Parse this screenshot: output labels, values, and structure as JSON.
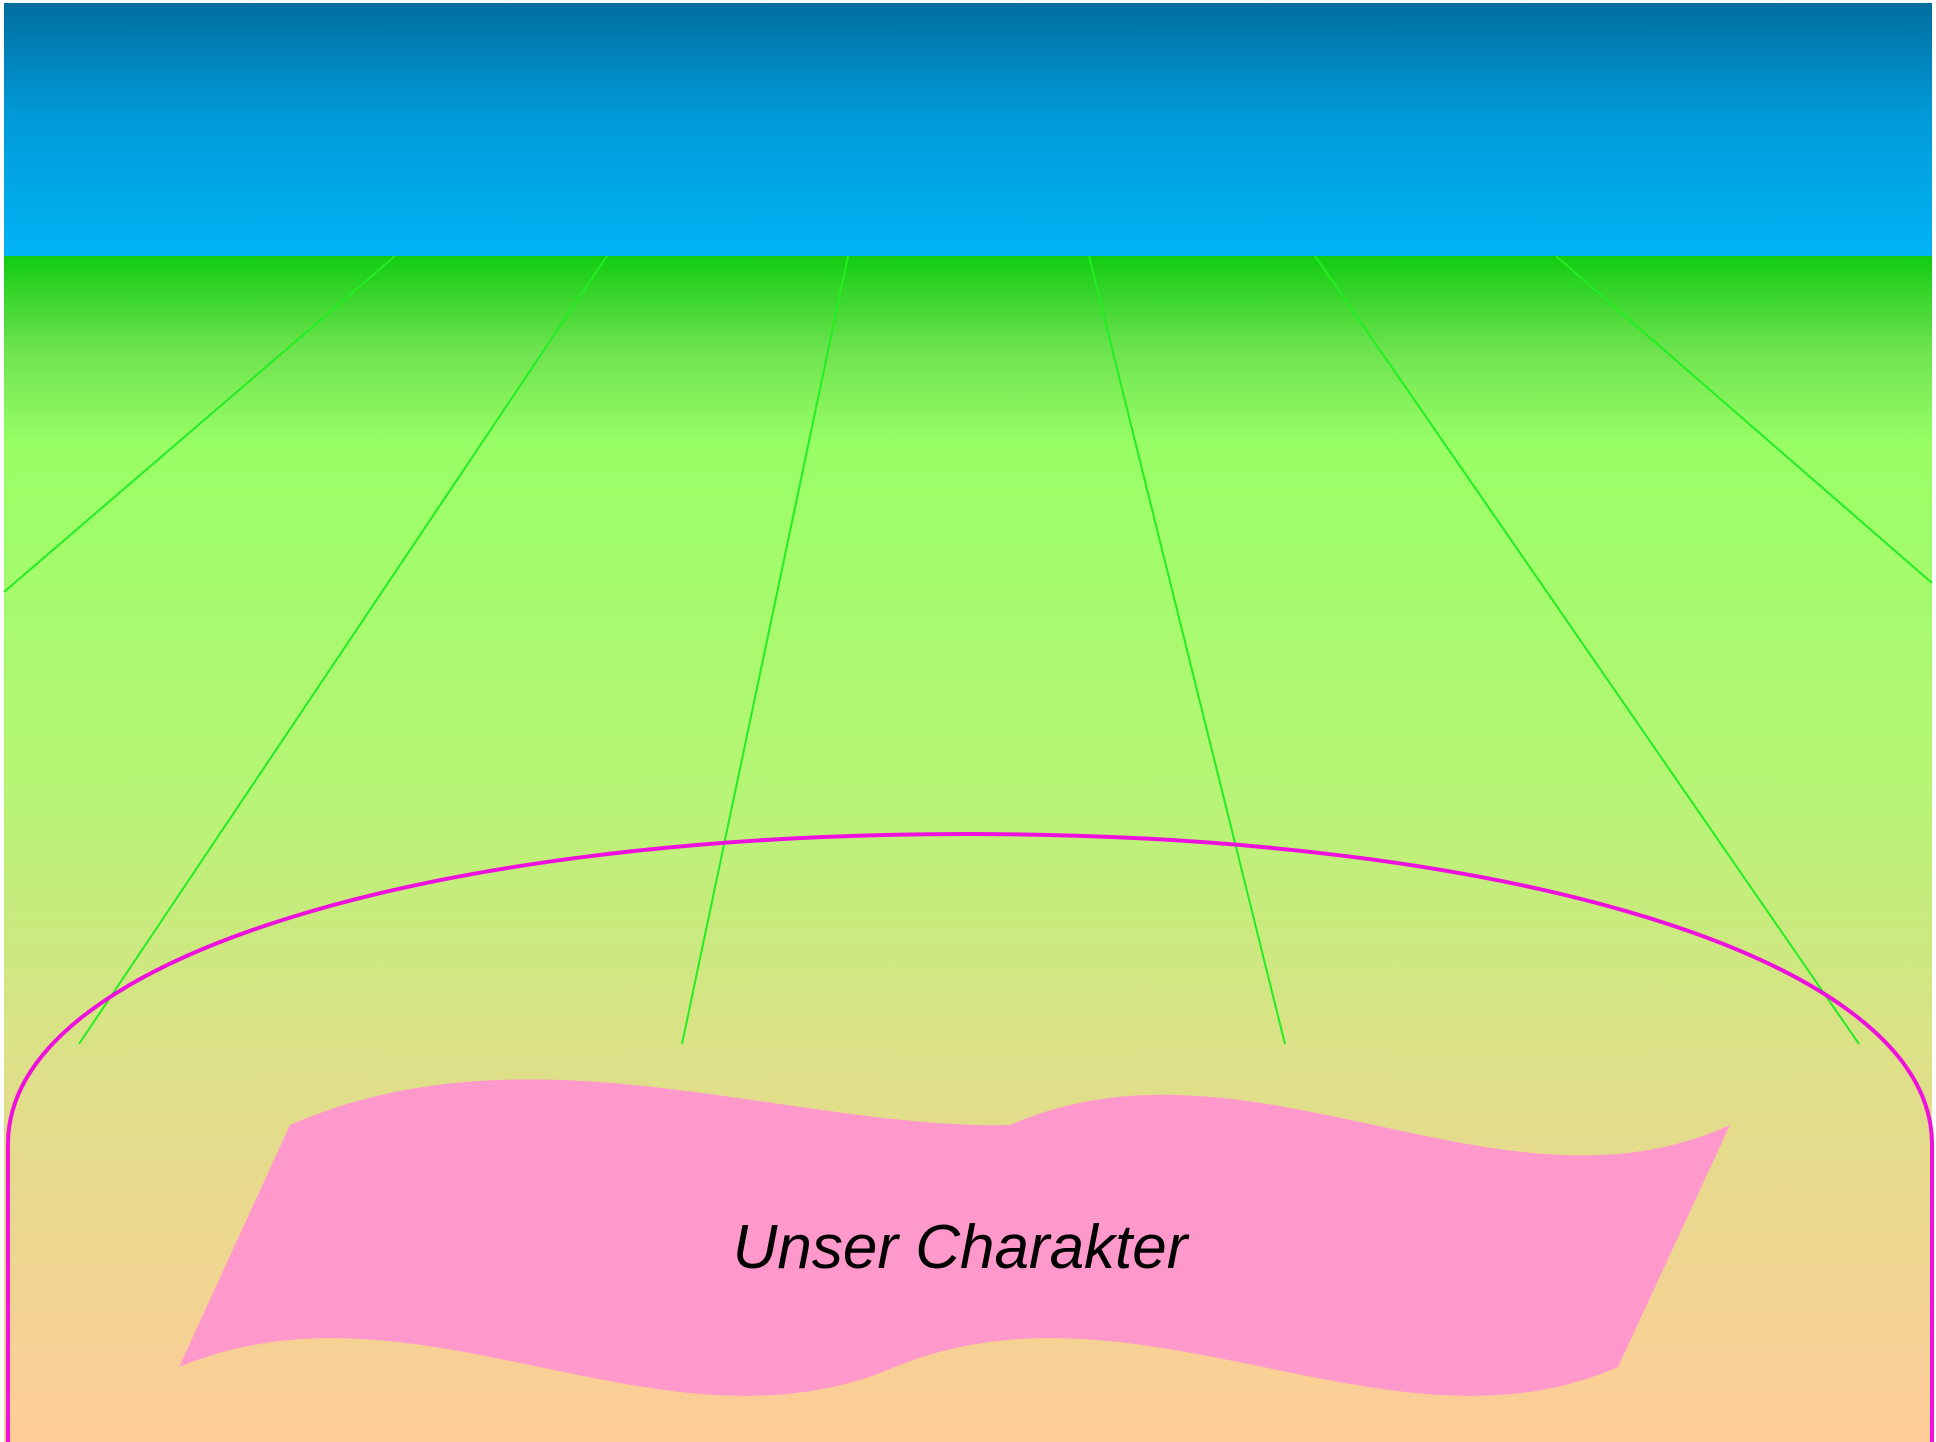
{
  "banner": {
    "label": "Unser Charakter"
  },
  "colors": {
    "sky_top": "#006E9E",
    "sky_bottom": "#00B4F5",
    "grass_top": "#12CC12",
    "grass_mid": "#99FF66",
    "ground_bottom": "#FFCC99",
    "ray_lines": "#22EE22",
    "outline": "#EE11DD",
    "banner_fill": "#FF99CC"
  }
}
